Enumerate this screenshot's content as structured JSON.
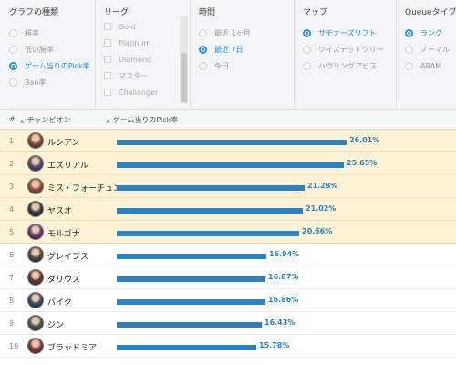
{
  "filters": {
    "graph_type": {
      "title": "グラフの種類",
      "options": [
        "勝率",
        "低い勝率",
        "ゲーム当りのPick率",
        "Ban率"
      ],
      "selected": 2
    },
    "league": {
      "title": "リーグ",
      "options": [
        "Gold",
        "Platinum",
        "Diamond",
        "マスター",
        "Challanger"
      ]
    },
    "time": {
      "title": "時間",
      "options": [
        "最近 1ヶ月",
        "最近 7日",
        "今日"
      ],
      "selected": 1
    },
    "map": {
      "title": "マップ",
      "options": [
        "サモナーズリフト",
        "ツイステッドツリー",
        "ハウリングアビス"
      ],
      "selected": 0
    },
    "queue": {
      "title": "Queueタイプ",
      "options": [
        "ランク",
        "ノーマル",
        "ARAM"
      ],
      "selected": 0
    }
  },
  "table": {
    "headers": {
      "rank": "#",
      "champion": "チャンピオン",
      "stat": "ゲーム当りのPick率"
    },
    "rows": [
      {
        "rank": "1",
        "name": "ルシアン",
        "value": 26.01,
        "label": "26.01%",
        "highlight": true,
        "color": "#8a4a3a"
      },
      {
        "rank": "2",
        "name": "エズリアル",
        "value": 25.65,
        "label": "25.65%",
        "highlight": true,
        "color": "#5a4a7a"
      },
      {
        "rank": "3",
        "name": "ミス・フォーチュン",
        "value": 21.28,
        "label": "21.28%",
        "highlight": true,
        "color": "#a0503a"
      },
      {
        "rank": "4",
        "name": "ヤスオ",
        "value": 21.02,
        "label": "21.02%",
        "highlight": true,
        "color": "#3a3a4a"
      },
      {
        "rank": "5",
        "name": "モルガナ",
        "value": 20.66,
        "label": "20.66%",
        "highlight": true,
        "color": "#6a3a7a"
      },
      {
        "rank": "6",
        "name": "グレイブス",
        "value": 16.94,
        "label": "16.94%",
        "highlight": false,
        "color": "#5a4a3a"
      },
      {
        "rank": "7",
        "name": "ダリウス",
        "value": 16.87,
        "label": "16.87%",
        "highlight": false,
        "color": "#6a3a3a"
      },
      {
        "rank": "8",
        "name": "バイク",
        "value": 16.86,
        "label": "16.86%",
        "highlight": false,
        "color": "#3a4a6a"
      },
      {
        "rank": "9",
        "name": "ジン",
        "value": 16.43,
        "label": "16.43%",
        "highlight": false,
        "color": "#4a5a5a"
      },
      {
        "rank": "10",
        "name": "ブラッドミア",
        "value": 15.78,
        "label": "15.78%",
        "highlight": false,
        "color": "#8a3a3a"
      }
    ]
  },
  "colors": {
    "accent": "#2a82c4",
    "highlight_row": "#fcf3d7"
  }
}
